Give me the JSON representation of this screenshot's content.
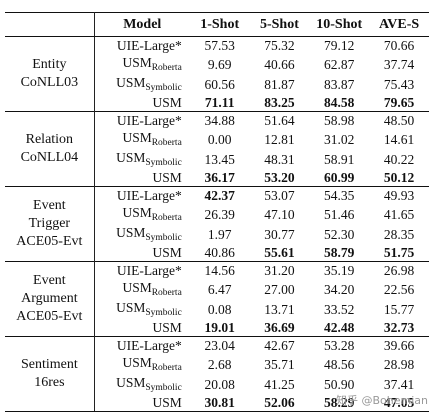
{
  "headers": [
    "",
    "Model",
    "1-Shot",
    "5-Shot",
    "10-Shot",
    "AVE-S"
  ],
  "groups": [
    {
      "task": [
        "Entity",
        "CoNLL03"
      ],
      "rows": [
        {
          "model": "UIE-Large*",
          "sub": "",
          "values": [
            "57.53",
            "75.32",
            "79.12",
            "70.66"
          ],
          "bold": [
            false,
            false,
            false,
            false
          ]
        },
        {
          "model": "USM",
          "sub": "Roberta",
          "values": [
            "9.69",
            "40.66",
            "62.87",
            "37.74"
          ],
          "bold": [
            false,
            false,
            false,
            false
          ]
        },
        {
          "model": "USM",
          "sub": "Symbolic",
          "values": [
            "60.56",
            "81.87",
            "83.87",
            "75.43"
          ],
          "bold": [
            false,
            false,
            false,
            false
          ]
        },
        {
          "model": "USM",
          "sub": "",
          "values": [
            "71.11",
            "83.25",
            "84.58",
            "79.65"
          ],
          "bold": [
            true,
            true,
            true,
            true
          ]
        }
      ]
    },
    {
      "task": [
        "Relation",
        "CoNLL04"
      ],
      "rows": [
        {
          "model": "UIE-Large*",
          "sub": "",
          "values": [
            "34.88",
            "51.64",
            "58.98",
            "48.50"
          ],
          "bold": [
            false,
            false,
            false,
            false
          ]
        },
        {
          "model": "USM",
          "sub": "Roberta",
          "values": [
            "0.00",
            "12.81",
            "31.02",
            "14.61"
          ],
          "bold": [
            false,
            false,
            false,
            false
          ]
        },
        {
          "model": "USM",
          "sub": "Symbolic",
          "values": [
            "13.45",
            "48.31",
            "58.91",
            "40.22"
          ],
          "bold": [
            false,
            false,
            false,
            false
          ]
        },
        {
          "model": "USM",
          "sub": "",
          "values": [
            "36.17",
            "53.20",
            "60.99",
            "50.12"
          ],
          "bold": [
            true,
            true,
            true,
            true
          ]
        }
      ]
    },
    {
      "task": [
        "Event",
        "Trigger",
        "ACE05-Evt"
      ],
      "rows": [
        {
          "model": "UIE-Large*",
          "sub": "",
          "values": [
            "42.37",
            "53.07",
            "54.35",
            "49.93"
          ],
          "bold": [
            true,
            false,
            false,
            false
          ]
        },
        {
          "model": "USM",
          "sub": "Roberta",
          "values": [
            "26.39",
            "47.10",
            "51.46",
            "41.65"
          ],
          "bold": [
            false,
            false,
            false,
            false
          ]
        },
        {
          "model": "USM",
          "sub": "Symbolic",
          "values": [
            "1.97",
            "30.77",
            "52.30",
            "28.35"
          ],
          "bold": [
            false,
            false,
            false,
            false
          ]
        },
        {
          "model": "USM",
          "sub": "",
          "values": [
            "40.86",
            "55.61",
            "58.79",
            "51.75"
          ],
          "bold": [
            false,
            true,
            true,
            true
          ]
        }
      ]
    },
    {
      "task": [
        "Event",
        "Argument",
        "ACE05-Evt"
      ],
      "rows": [
        {
          "model": "UIE-Large*",
          "sub": "",
          "values": [
            "14.56",
            "31.20",
            "35.19",
            "26.98"
          ],
          "bold": [
            false,
            false,
            false,
            false
          ]
        },
        {
          "model": "USM",
          "sub": "Roberta",
          "values": [
            "6.47",
            "27.00",
            "34.20",
            "22.56"
          ],
          "bold": [
            false,
            false,
            false,
            false
          ]
        },
        {
          "model": "USM",
          "sub": "Symbolic",
          "values": [
            "0.08",
            "13.71",
            "33.52",
            "15.77"
          ],
          "bold": [
            false,
            false,
            false,
            false
          ]
        },
        {
          "model": "USM",
          "sub": "",
          "values": [
            "19.01",
            "36.69",
            "42.48",
            "32.73"
          ],
          "bold": [
            true,
            true,
            true,
            true
          ]
        }
      ]
    },
    {
      "task": [
        "Sentiment",
        "16res"
      ],
      "rows": [
        {
          "model": "UIE-Large*",
          "sub": "",
          "values": [
            "23.04",
            "42.67",
            "53.28",
            "39.66"
          ],
          "bold": [
            false,
            false,
            false,
            false
          ]
        },
        {
          "model": "USM",
          "sub": "Roberta",
          "values": [
            "2.68",
            "35.71",
            "48.56",
            "28.98"
          ],
          "bold": [
            false,
            false,
            false,
            false
          ]
        },
        {
          "model": "USM",
          "sub": "Symbolic",
          "values": [
            "20.08",
            "41.25",
            "50.90",
            "37.41"
          ],
          "bold": [
            false,
            false,
            false,
            false
          ]
        },
        {
          "model": "USM",
          "sub": "",
          "values": [
            "30.81",
            "52.06",
            "58.29",
            "47.05"
          ],
          "bold": [
            true,
            true,
            true,
            true
          ]
        }
      ]
    }
  ],
  "watermark": "知乎 @Bohemian"
}
